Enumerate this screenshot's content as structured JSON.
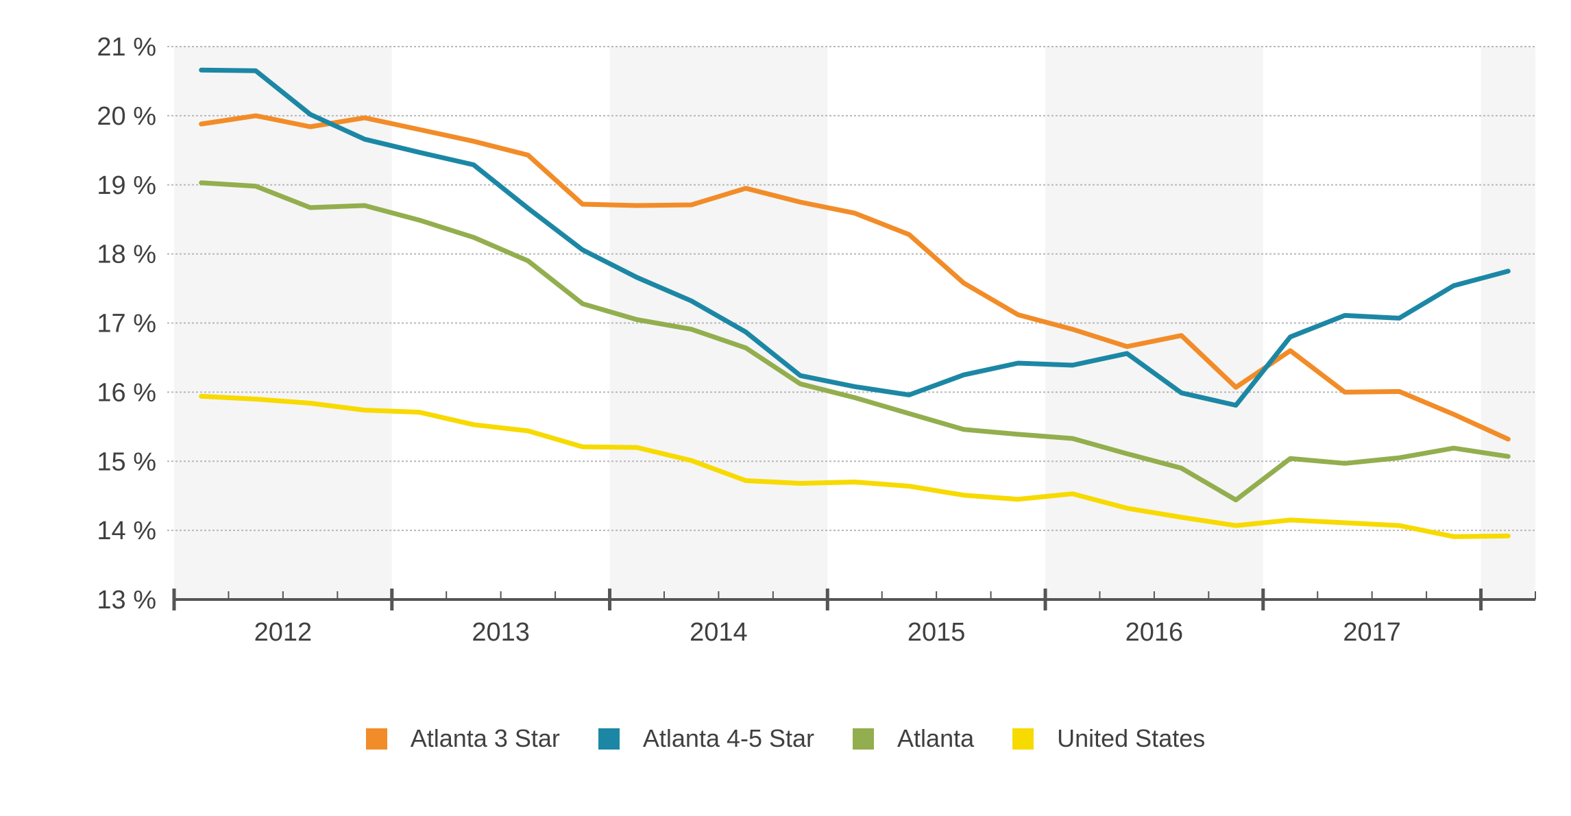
{
  "chart_data": {
    "type": "line",
    "title": "",
    "xlabel": "",
    "ylabel": "",
    "ylim": [
      13,
      21
    ],
    "y_ticks": [
      "13 %",
      "14 %",
      "15 %",
      "16 %",
      "17 %",
      "18 %",
      "19 %",
      "20 %",
      "21 %"
    ],
    "x_tick_labels": [
      "2012",
      "2013",
      "2014",
      "2015",
      "2016",
      "2017"
    ],
    "xlim_quarters": [
      0,
      25
    ],
    "x_quarters": [
      0.5,
      1.5,
      2.5,
      3.5,
      4.5,
      5.5,
      6.5,
      7.5,
      8.5,
      9.5,
      10.5,
      11.5,
      12.5,
      13.5,
      14.5,
      15.5,
      16.5,
      17.5,
      18.5,
      19.5,
      20.5,
      21.5,
      22.5,
      23.5,
      24.5
    ],
    "grid": "horizontal dotted",
    "alternating_year_shading": true,
    "legend_position": "bottom",
    "series": [
      {
        "name": "Atlanta 3 Star",
        "color": "#F28C28",
        "values": [
          19.88,
          20.0,
          19.84,
          19.97,
          19.8,
          19.63,
          19.43,
          18.72,
          18.7,
          18.71,
          18.95,
          18.75,
          18.59,
          18.28,
          17.58,
          17.12,
          16.91,
          16.66,
          16.82,
          16.07,
          16.6,
          16.0,
          16.01,
          15.68,
          15.32
        ]
      },
      {
        "name": "Atlanta 4-5 Star",
        "color": "#1C87A5",
        "values": [
          20.66,
          20.65,
          20.02,
          19.66,
          19.47,
          19.29,
          18.66,
          18.06,
          17.66,
          17.32,
          16.87,
          16.24,
          16.08,
          15.96,
          16.25,
          16.42,
          16.39,
          16.56,
          15.99,
          15.81,
          16.8,
          17.11,
          17.07,
          17.54,
          17.75
        ]
      },
      {
        "name": "Atlanta",
        "color": "#93AE4E",
        "values": [
          19.03,
          18.98,
          18.67,
          18.7,
          18.49,
          18.24,
          17.9,
          17.28,
          17.05,
          16.91,
          16.64,
          16.12,
          15.92,
          15.69,
          15.46,
          15.39,
          15.33,
          15.11,
          14.9,
          14.44,
          15.04,
          14.97,
          15.05,
          15.19,
          15.07
        ]
      },
      {
        "name": "United States",
        "color": "#F7DA00",
        "values": [
          15.94,
          15.9,
          15.84,
          15.74,
          15.71,
          15.53,
          15.44,
          15.21,
          15.2,
          15.01,
          14.72,
          14.68,
          14.7,
          14.64,
          14.51,
          14.45,
          14.53,
          14.32,
          14.19,
          14.07,
          14.15,
          14.11,
          14.07,
          13.91,
          13.92
        ]
      }
    ]
  }
}
